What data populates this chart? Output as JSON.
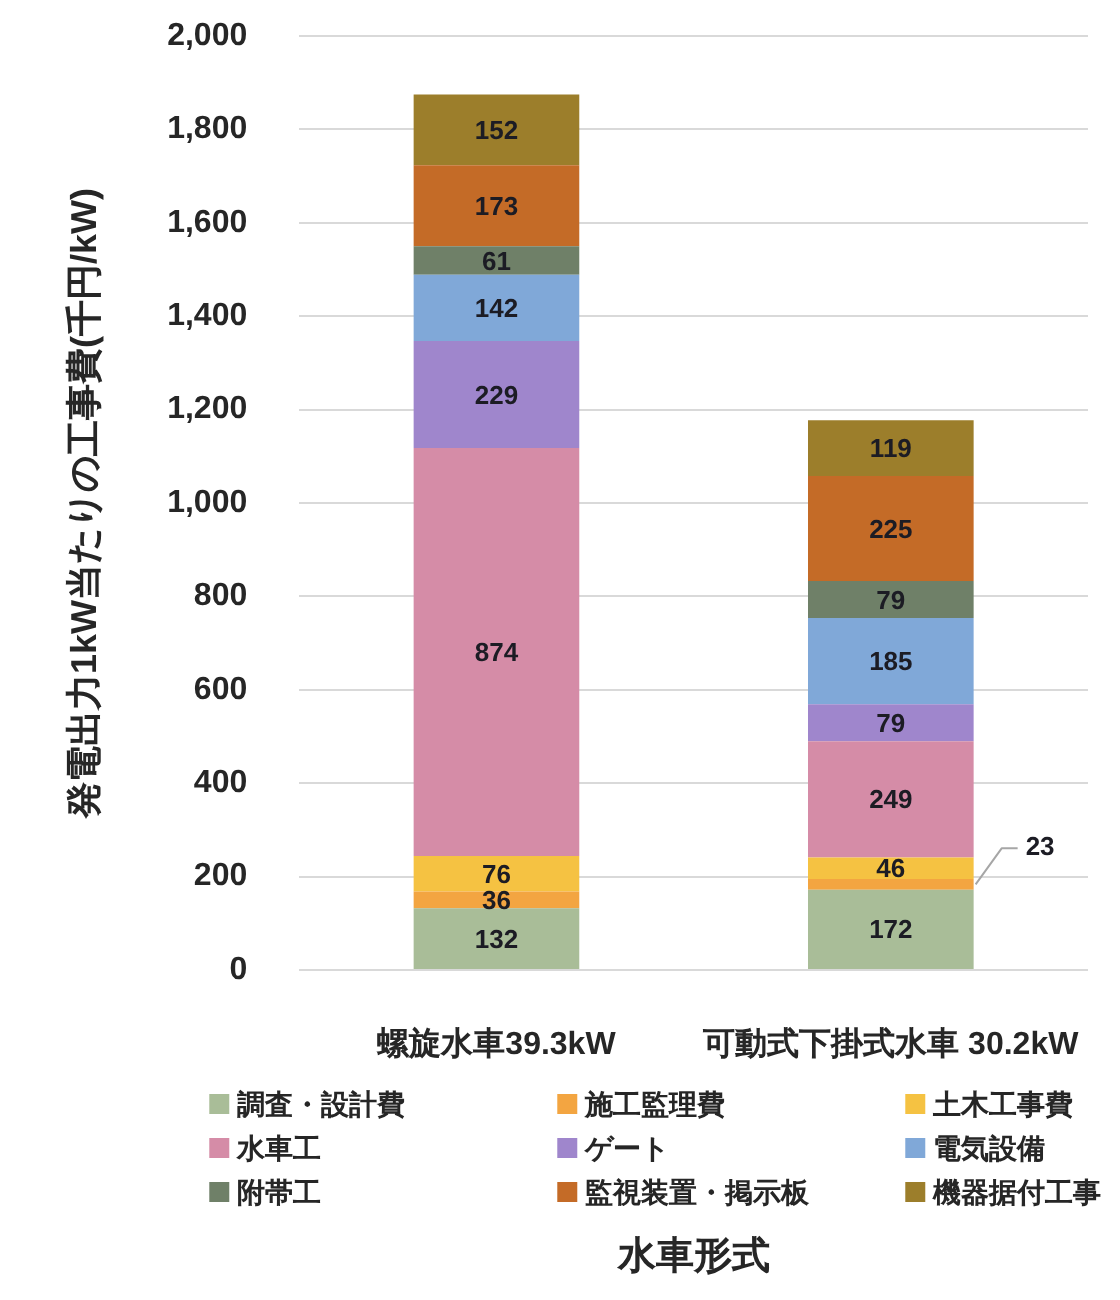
{
  "chart_data": {
    "type": "bar",
    "stacked": true,
    "categories": [
      "螺旋水車39.3kW",
      "可動式下掛式水車 30.2kW"
    ],
    "series": [
      {
        "name": "調査・設計費",
        "color": "#a9bd98",
        "values": [
          132,
          172
        ]
      },
      {
        "name": "施工監理費",
        "color": "#f3a541",
        "values": [
          36,
          23
        ]
      },
      {
        "name": "土木工事費",
        "color": "#f5c242",
        "values": [
          76,
          46
        ]
      },
      {
        "name": "水車工",
        "color": "#d58ca7",
        "values": [
          874,
          249
        ]
      },
      {
        "name": "ゲート",
        "color": "#9f86cc",
        "values": [
          229,
          79
        ]
      },
      {
        "name": "電気設備",
        "color": "#80a8d8",
        "values": [
          142,
          185
        ]
      },
      {
        "name": "附帯工",
        "color": "#6f8068",
        "values": [
          61,
          79
        ]
      },
      {
        "name": "監視装置・掲示板",
        "color": "#c46b27",
        "values": [
          173,
          225
        ]
      },
      {
        "name": "機器据付工事",
        "color": "#9c7e2b",
        "values": [
          152,
          119
        ]
      }
    ],
    "xlabel": "水車形式",
    "ylabel": "発電出力1kW当たりの工事費(千円/kW)",
    "ylim": [
      0,
      2000
    ],
    "yticks": [
      0,
      200,
      400,
      600,
      800,
      {
        "value": 1000,
        "label": "1,000"
      },
      {
        "value": 1200,
        "label": "1,200"
      },
      {
        "value": 1400,
        "label": "1,400"
      },
      {
        "value": 1600,
        "label": "1,600"
      },
      {
        "value": 1800,
        "label": "1,800"
      },
      {
        "value": 2000,
        "label": "2,000"
      }
    ],
    "grid": "y",
    "legend": "bottom",
    "data_labels": true
  }
}
